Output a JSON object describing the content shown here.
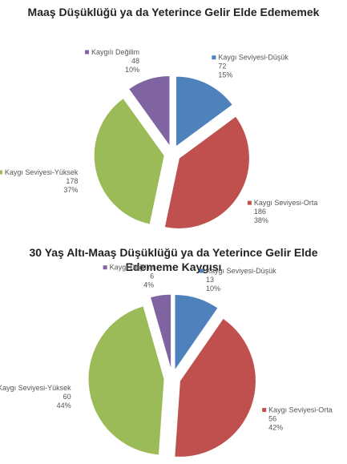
{
  "chart_data": [
    {
      "type": "pie",
      "title": "Maaş Düşüklüğü ya da Yeterince Gelir Elde Edememek",
      "categories": [
        "Kaygı Seviyesi-Düşük",
        "Kaygı Seviyesi-Orta",
        "Kaygı Seviyesi-Yüksek",
        "Kaygılı Değilim"
      ],
      "values": [
        72,
        186,
        178,
        48
      ],
      "percent_labels": [
        "15%",
        "38%",
        "37%",
        "10%"
      ],
      "colors": [
        "#4f81bd",
        "#c0504d",
        "#9bbb59",
        "#8064a2"
      ]
    },
    {
      "type": "pie",
      "title": "30 Yaş Altı-Maaş Düşüklüğü ya da Yeterince  Gelir Elde Edememe Kaygısı",
      "categories": [
        "Kaygı Seviyesi-Düşük",
        "Kaygı Seviyesi-Orta",
        "Kaygı Seviyesi-Yüksek",
        "Kaygı Değilim"
      ],
      "values": [
        13,
        56,
        60,
        6
      ],
      "percent_labels": [
        "10%",
        "42%",
        "44%",
        "4%"
      ],
      "colors": [
        "#4f81bd",
        "#c0504d",
        "#9bbb59",
        "#8064a2"
      ]
    }
  ]
}
